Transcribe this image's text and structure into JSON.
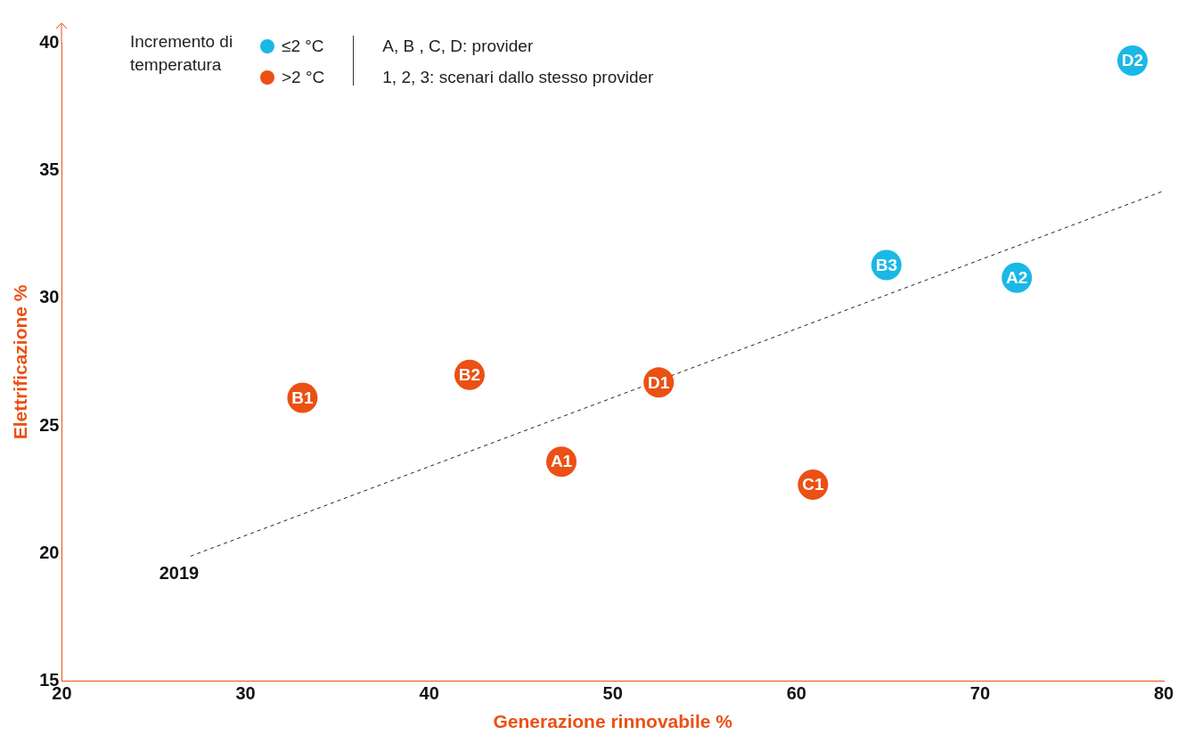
{
  "chart_data": {
    "type": "scatter",
    "xlabel": "Generazione rinnovabile %",
    "ylabel": "Elettrificazione %",
    "legend_title": "Incremento di temperatura",
    "legend": "top left",
    "xlim": [
      20,
      80
    ],
    "xticks": [
      20,
      30,
      40,
      50,
      60,
      70,
      80
    ],
    "ylim": [
      15,
      40
    ],
    "yticks": [
      15,
      20,
      25,
      30,
      35,
      40
    ],
    "grid": false,
    "marker": "circle",
    "series": [
      {
        "name": "≤2 °C",
        "color": "#1ab8e6",
        "x": [
          64.9,
          72.0,
          78.3
        ],
        "values": [
          31.3,
          30.8,
          39.3
        ],
        "value_labels": [
          "B3",
          "A2",
          "D2"
        ]
      },
      {
        "name": ">2 °C",
        "color": "#eb5014",
        "x": [
          33.1,
          42.2,
          47.2,
          52.5,
          60.9
        ],
        "values": [
          26.1,
          27.0,
          23.6,
          26.7,
          22.7
        ],
        "value_labels": [
          "B1",
          "B2",
          "A1",
          "D1",
          "C1"
        ]
      },
      {
        "type": "line",
        "color": "#222222",
        "line_style": "dashed",
        "marker": "none",
        "x": [
          27.0,
          80.0
        ],
        "values": [
          19.9,
          34.2
        ]
      }
    ],
    "annotations": [
      {
        "text": "2019",
        "x": 27.0,
        "y": 19.9
      },
      "A, B , C, D: provider",
      "1, 2, 3: scenari dallo stesso provider"
    ]
  }
}
